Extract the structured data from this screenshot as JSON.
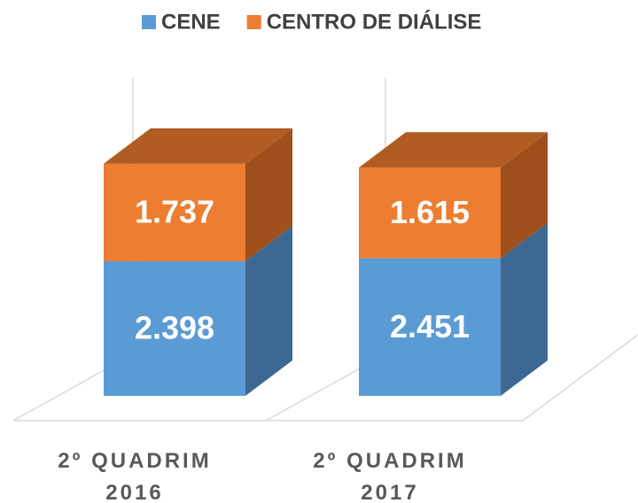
{
  "chart_data": {
    "type": "bar3d_stacked",
    "categories": [
      "2º QUADRIM 2016",
      "2º QUADRIM 2017"
    ],
    "series": [
      {
        "name": "CENE",
        "color": "#5b9bd5",
        "side_color": "#3d6891",
        "top_color": "#4a80b3",
        "values": [
          2398,
          2451
        ],
        "value_labels": [
          "2.398",
          "2.451"
        ]
      },
      {
        "name": "CENTRO DE DIÁLISE",
        "color": "#ed7d31",
        "side_color": "#9e4f1c",
        "top_color": "#b05c22",
        "values": [
          1737,
          1615
        ],
        "value_labels": [
          "1.737",
          "1.615"
        ]
      }
    ],
    "legend": "top"
  }
}
